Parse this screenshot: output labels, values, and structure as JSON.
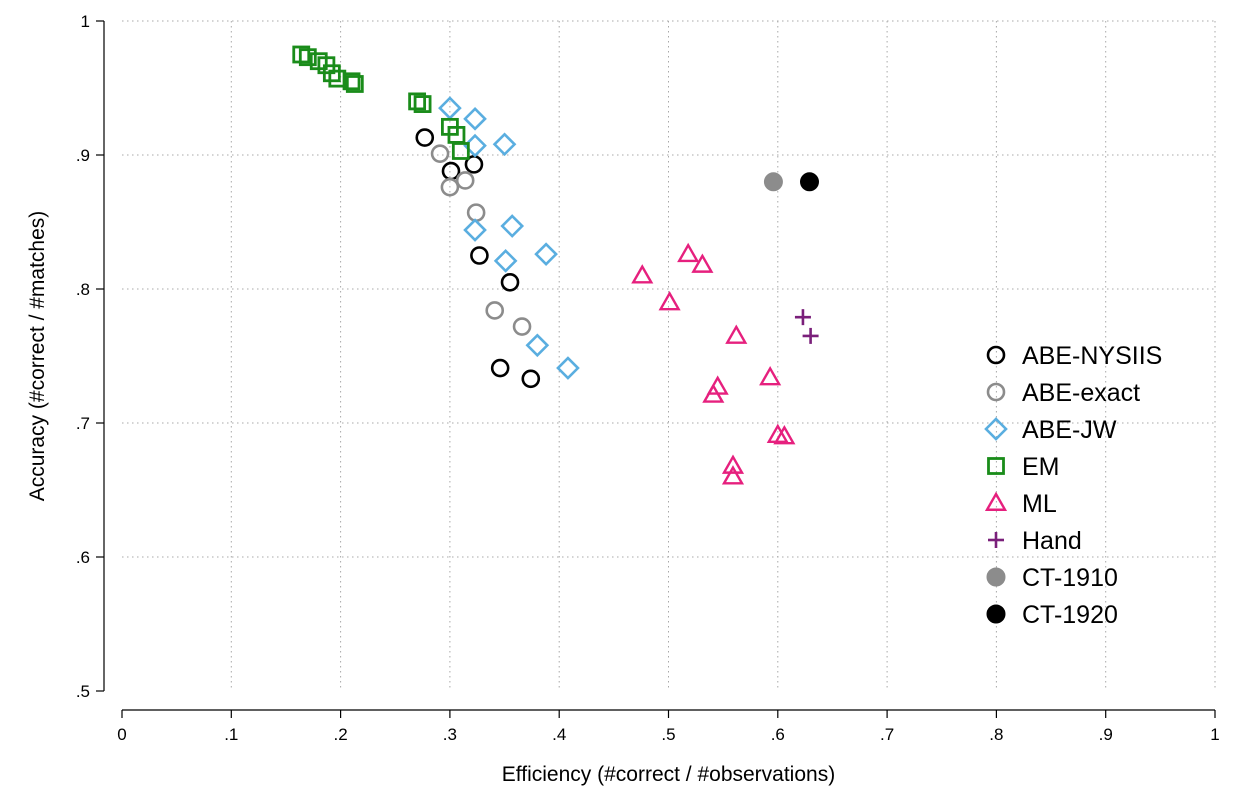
{
  "chart_data": {
    "type": "scatter",
    "xlabel": "Efficiency (#correct / #observations)",
    "ylabel": "Accuracy (#correct / #matches)",
    "xlim": [
      0,
      1
    ],
    "ylim": [
      0.5,
      1
    ],
    "x_ticks": [
      {
        "value": 0,
        "label": "0"
      },
      {
        "value": 0.1,
        "label": ".1"
      },
      {
        "value": 0.2,
        "label": ".2"
      },
      {
        "value": 0.3,
        "label": ".3"
      },
      {
        "value": 0.4,
        "label": ".4"
      },
      {
        "value": 0.5,
        "label": ".5"
      },
      {
        "value": 0.6,
        "label": ".6"
      },
      {
        "value": 0.7,
        "label": ".7"
      },
      {
        "value": 0.8,
        "label": ".8"
      },
      {
        "value": 0.9,
        "label": ".9"
      },
      {
        "value": 1,
        "label": "1"
      }
    ],
    "y_ticks": [
      {
        "value": 0.5,
        "label": ".5"
      },
      {
        "value": 0.6,
        "label": ".6"
      },
      {
        "value": 0.7,
        "label": ".7"
      },
      {
        "value": 0.8,
        "label": ".8"
      },
      {
        "value": 0.9,
        "label": ".9"
      },
      {
        "value": 1,
        "label": "1"
      }
    ],
    "grid": true,
    "legend_position": "right",
    "series": [
      {
        "name": "ABE-NYSIIS",
        "marker": "circle-open",
        "color": "#000000",
        "points": [
          [
            0.277,
            0.913
          ],
          [
            0.301,
            0.888
          ],
          [
            0.322,
            0.893
          ],
          [
            0.327,
            0.825
          ],
          [
            0.355,
            0.805
          ],
          [
            0.346,
            0.741
          ],
          [
            0.374,
            0.733
          ]
        ]
      },
      {
        "name": "ABE-exact",
        "marker": "circle-open",
        "color": "#8c8c8c",
        "points": [
          [
            0.291,
            0.901
          ],
          [
            0.3,
            0.876
          ],
          [
            0.314,
            0.881
          ],
          [
            0.324,
            0.857
          ],
          [
            0.341,
            0.784
          ],
          [
            0.366,
            0.772
          ]
        ]
      },
      {
        "name": "ABE-JW",
        "marker": "diamond-open",
        "color": "#5aaee0",
        "points": [
          [
            0.3,
            0.935
          ],
          [
            0.323,
            0.927
          ],
          [
            0.323,
            0.907
          ],
          [
            0.35,
            0.908
          ],
          [
            0.323,
            0.844
          ],
          [
            0.357,
            0.847
          ],
          [
            0.351,
            0.821
          ],
          [
            0.388,
            0.826
          ],
          [
            0.38,
            0.758
          ],
          [
            0.408,
            0.741
          ]
        ]
      },
      {
        "name": "EM",
        "marker": "square-open",
        "color": "#1a8c1a",
        "points": [
          [
            0.164,
            0.975
          ],
          [
            0.17,
            0.973
          ],
          [
            0.18,
            0.97
          ],
          [
            0.187,
            0.967
          ],
          [
            0.192,
            0.961
          ],
          [
            0.197,
            0.957
          ],
          [
            0.21,
            0.955
          ],
          [
            0.213,
            0.953
          ],
          [
            0.27,
            0.94
          ],
          [
            0.275,
            0.938
          ],
          [
            0.3,
            0.921
          ],
          [
            0.306,
            0.915
          ],
          [
            0.31,
            0.903
          ]
        ]
      },
      {
        "name": "ML",
        "marker": "triangle-open",
        "color": "#e6207e",
        "points": [
          [
            0.476,
            0.81
          ],
          [
            0.501,
            0.79
          ],
          [
            0.518,
            0.826
          ],
          [
            0.531,
            0.818
          ],
          [
            0.562,
            0.765
          ],
          [
            0.545,
            0.727
          ],
          [
            0.541,
            0.721
          ],
          [
            0.593,
            0.734
          ],
          [
            0.6,
            0.691
          ],
          [
            0.606,
            0.69
          ],
          [
            0.559,
            0.668
          ],
          [
            0.559,
            0.66
          ]
        ]
      },
      {
        "name": "Hand",
        "marker": "plus",
        "color": "#7a1f7a",
        "points": [
          [
            0.623,
            0.779
          ],
          [
            0.63,
            0.765
          ]
        ]
      },
      {
        "name": "CT-1910",
        "marker": "circle-filled",
        "color": "#8c8c8c",
        "points": [
          [
            0.596,
            0.88
          ]
        ]
      },
      {
        "name": "CT-1920",
        "marker": "circle-filled",
        "color": "#000000",
        "points": [
          [
            0.629,
            0.88
          ]
        ]
      }
    ]
  }
}
